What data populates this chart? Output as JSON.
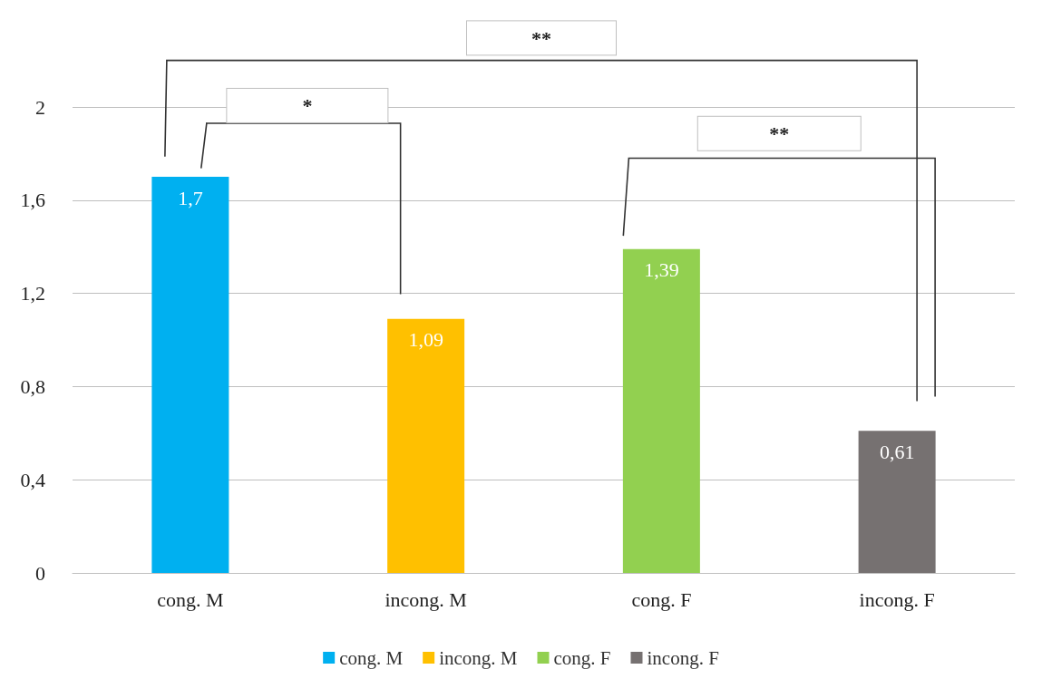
{
  "chart_data": {
    "type": "bar",
    "categories": [
      "cong. M",
      "incong. M",
      "cong. F",
      "incong. F"
    ],
    "series": [
      {
        "name": "cong. M",
        "color": "#00b0f0",
        "values": [
          1.7,
          null,
          null,
          null
        ],
        "value_labels": [
          "1,7",
          null,
          null,
          null
        ]
      },
      {
        "name": "incong. M",
        "color": "#ffc000",
        "values": [
          null,
          1.09,
          null,
          null
        ],
        "value_labels": [
          null,
          "1,09",
          null,
          null
        ]
      },
      {
        "name": "cong. F",
        "color": "#92d050",
        "values": [
          null,
          null,
          1.39,
          null
        ],
        "value_labels": [
          null,
          null,
          "1,39",
          null
        ]
      },
      {
        "name": "incong. F",
        "color": "#767171",
        "values": [
          null,
          null,
          null,
          0.61
        ],
        "value_labels": [
          null,
          null,
          null,
          "0,61"
        ]
      }
    ],
    "ylim": [
      0,
      2
    ],
    "yticks": [
      0,
      {
        "value": 0.4,
        "label": "0,4"
      },
      {
        "value": 0.8,
        "label": "0,8"
      },
      {
        "value": 1.2,
        "label": "1,2"
      },
      {
        "value": 1.6,
        "label": "1,6"
      },
      2
    ],
    "grid": "y",
    "legend": "bottom",
    "annotations": [
      "*",
      "**",
      "**"
    ]
  }
}
